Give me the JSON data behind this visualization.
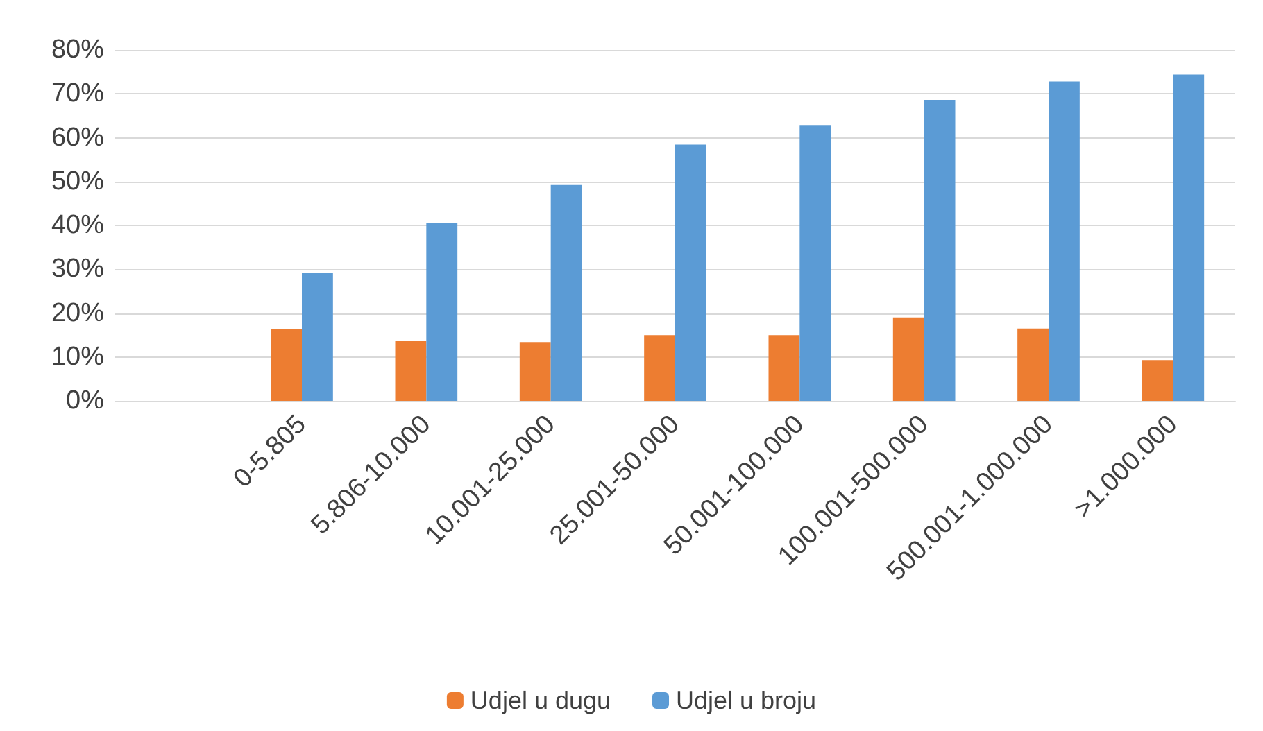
{
  "chart_data": {
    "type": "bar",
    "categories": [
      null,
      "0-5.805",
      "5.806-10.000",
      "10.001-25.000",
      "25.001-50.000",
      "50.001-100.000",
      "100.001-500.000",
      "500.001-1.000.000",
      ">1.000.000"
    ],
    "series": [
      {
        "name": "Udjel u dugu",
        "color": "#ed7d31",
        "values": [
          null,
          16.3,
          13.6,
          13.4,
          15,
          15,
          19,
          16.5,
          9.3
        ]
      },
      {
        "name": "Udjel u broju",
        "color": "#5b9bd5",
        "values": [
          null,
          29.2,
          40.6,
          49.2,
          58.4,
          62.9,
          68.6,
          72.8,
          74.4
        ]
      }
    ],
    "ylim": [
      0,
      80
    ],
    "yticks": [
      {
        "value": 0,
        "label": "0%"
      },
      {
        "value": 10,
        "label": "10%"
      },
      {
        "value": 20,
        "label": "20%"
      },
      {
        "value": 30,
        "label": "30%"
      },
      {
        "value": 40,
        "label": "40%"
      },
      {
        "value": 50,
        "label": "50%"
      },
      {
        "value": 60,
        "label": "60%"
      },
      {
        "value": 70,
        "label": "70%"
      },
      {
        "value": 80,
        "label": "80%"
      }
    ],
    "grid": "y",
    "legend": "bottom"
  }
}
